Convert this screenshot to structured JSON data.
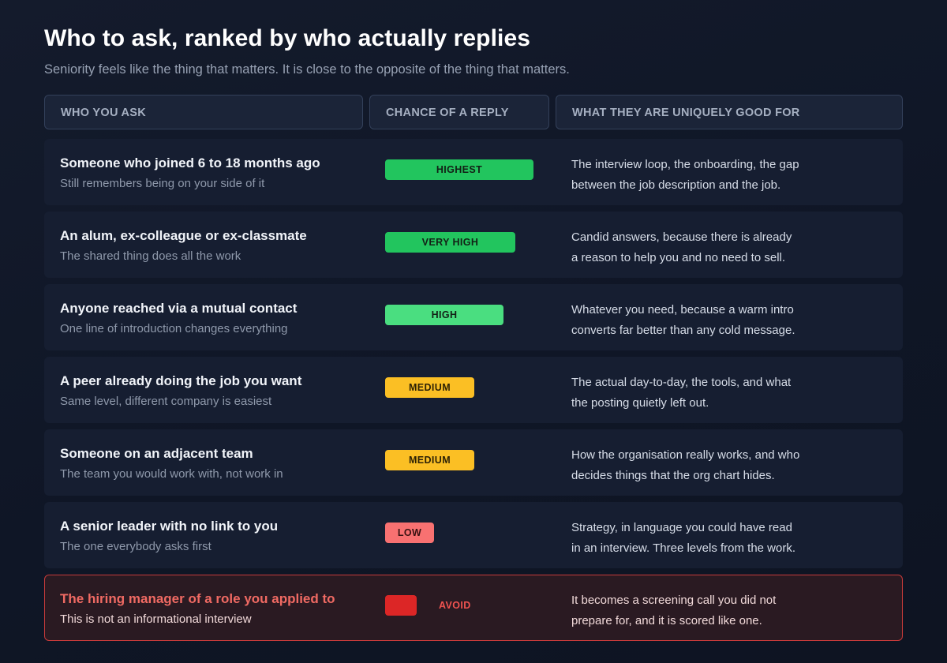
{
  "title": "Who to ask, ranked by who actually replies",
  "subtitle": "Seniority feels like the thing that matters. It is close to the opposite of the thing that matters.",
  "columns": {
    "who": "WHO YOU ASK",
    "chance": "CHANCE OF A REPLY",
    "good_for": "WHAT THEY ARE UNIQUELY GOOD FOR"
  },
  "colors": {
    "highest": "#22c55e",
    "very_high": "#22c55e",
    "high": "#4ade80",
    "medium": "#fbbf24",
    "low": "#f87171",
    "avoid": "#dc2626",
    "avoid_text": "#ef5350"
  },
  "rows": [
    {
      "title": "Someone who joined 6 to 18 months ago",
      "subtitle": "Still remembers being on your side of it",
      "chance": "HIGHEST",
      "chance_fraction": 1.0,
      "good_line1": "The interview loop, the onboarding, the gap",
      "good_line2": "between the job description and the job."
    },
    {
      "title": "An alum, ex-colleague or ex-classmate",
      "subtitle": "The shared thing does all the work",
      "chance": "VERY HIGH",
      "chance_fraction": 0.88,
      "good_line1": "Candid answers, because there is already",
      "good_line2": "a reason to help you and no need to sell."
    },
    {
      "title": "Anyone reached via a mutual contact",
      "subtitle": "One line of introduction changes everything",
      "chance": "HIGH",
      "chance_fraction": 0.8,
      "good_line1": "Whatever you need, because a warm intro",
      "good_line2": "converts far better than any cold message."
    },
    {
      "title": "A peer already doing the job you want",
      "subtitle": "Same level, different company is easiest",
      "chance": "MEDIUM",
      "chance_fraction": 0.6,
      "good_line1": "The actual day-to-day, the tools, and what",
      "good_line2": "the posting quietly left out."
    },
    {
      "title": "Someone on an adjacent team",
      "subtitle": "The team you would work with, not work in",
      "chance": "MEDIUM",
      "chance_fraction": 0.6,
      "good_line1": "How the organisation really works, and who",
      "good_line2": "decides things that the org chart hides."
    },
    {
      "title": "A senior leader with no link to you",
      "subtitle": "The one everybody asks first",
      "chance": "LOW",
      "chance_fraction": 0.33,
      "good_line1": "Strategy, in language you could have read",
      "good_line2": "in an interview. Three levels from the work."
    },
    {
      "title": "The hiring manager of a role you applied to",
      "subtitle": "This is not an informational interview",
      "chance": "AVOID",
      "chance_fraction": 0.21,
      "good_line1": "It becomes a screening call you did not",
      "good_line2": "prepare for, and it is scored like one."
    }
  ]
}
